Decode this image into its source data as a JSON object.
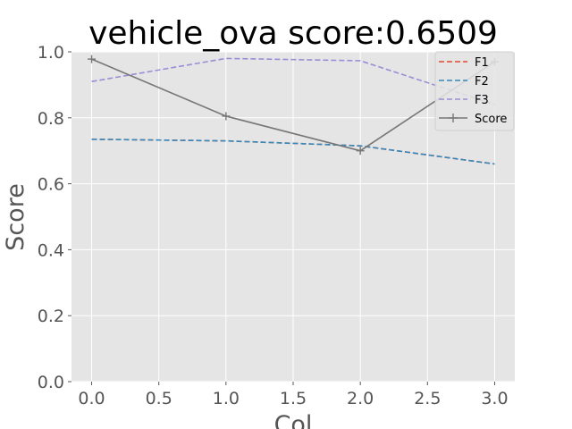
{
  "chart_data": {
    "type": "line",
    "title": "vehicle_ova score:0.6509",
    "xlabel": "Col",
    "ylabel": "Score",
    "x": [
      0,
      1,
      2,
      3
    ],
    "xlim": [
      -0.15,
      3.15
    ],
    "ylim": [
      0.0,
      1.0
    ],
    "xticks": [
      "0.0",
      "0.5",
      "1.0",
      "1.5",
      "2.0",
      "2.5",
      "3.0"
    ],
    "yticks": [
      "0.0",
      "0.2",
      "0.4",
      "0.6",
      "0.8",
      "1.0"
    ],
    "grid": true,
    "legend_position": "top-right",
    "series": [
      {
        "name": "F1",
        "values": [
          0.735,
          0.73,
          0.715,
          0.66
        ],
        "color": "#e24a33",
        "style": "dashed",
        "marker": "none"
      },
      {
        "name": "F2",
        "values": [
          0.735,
          0.73,
          0.715,
          0.66
        ],
        "color": "#348abd",
        "style": "dashed",
        "marker": "none"
      },
      {
        "name": "F3",
        "values": [
          0.91,
          0.98,
          0.973,
          0.84
        ],
        "color": "#988ed5",
        "style": "dashed",
        "marker": "none"
      },
      {
        "name": "Score",
        "values": [
          0.978,
          0.805,
          0.7,
          0.97
        ],
        "color": "#777777",
        "style": "solid",
        "marker": "plus"
      }
    ]
  }
}
